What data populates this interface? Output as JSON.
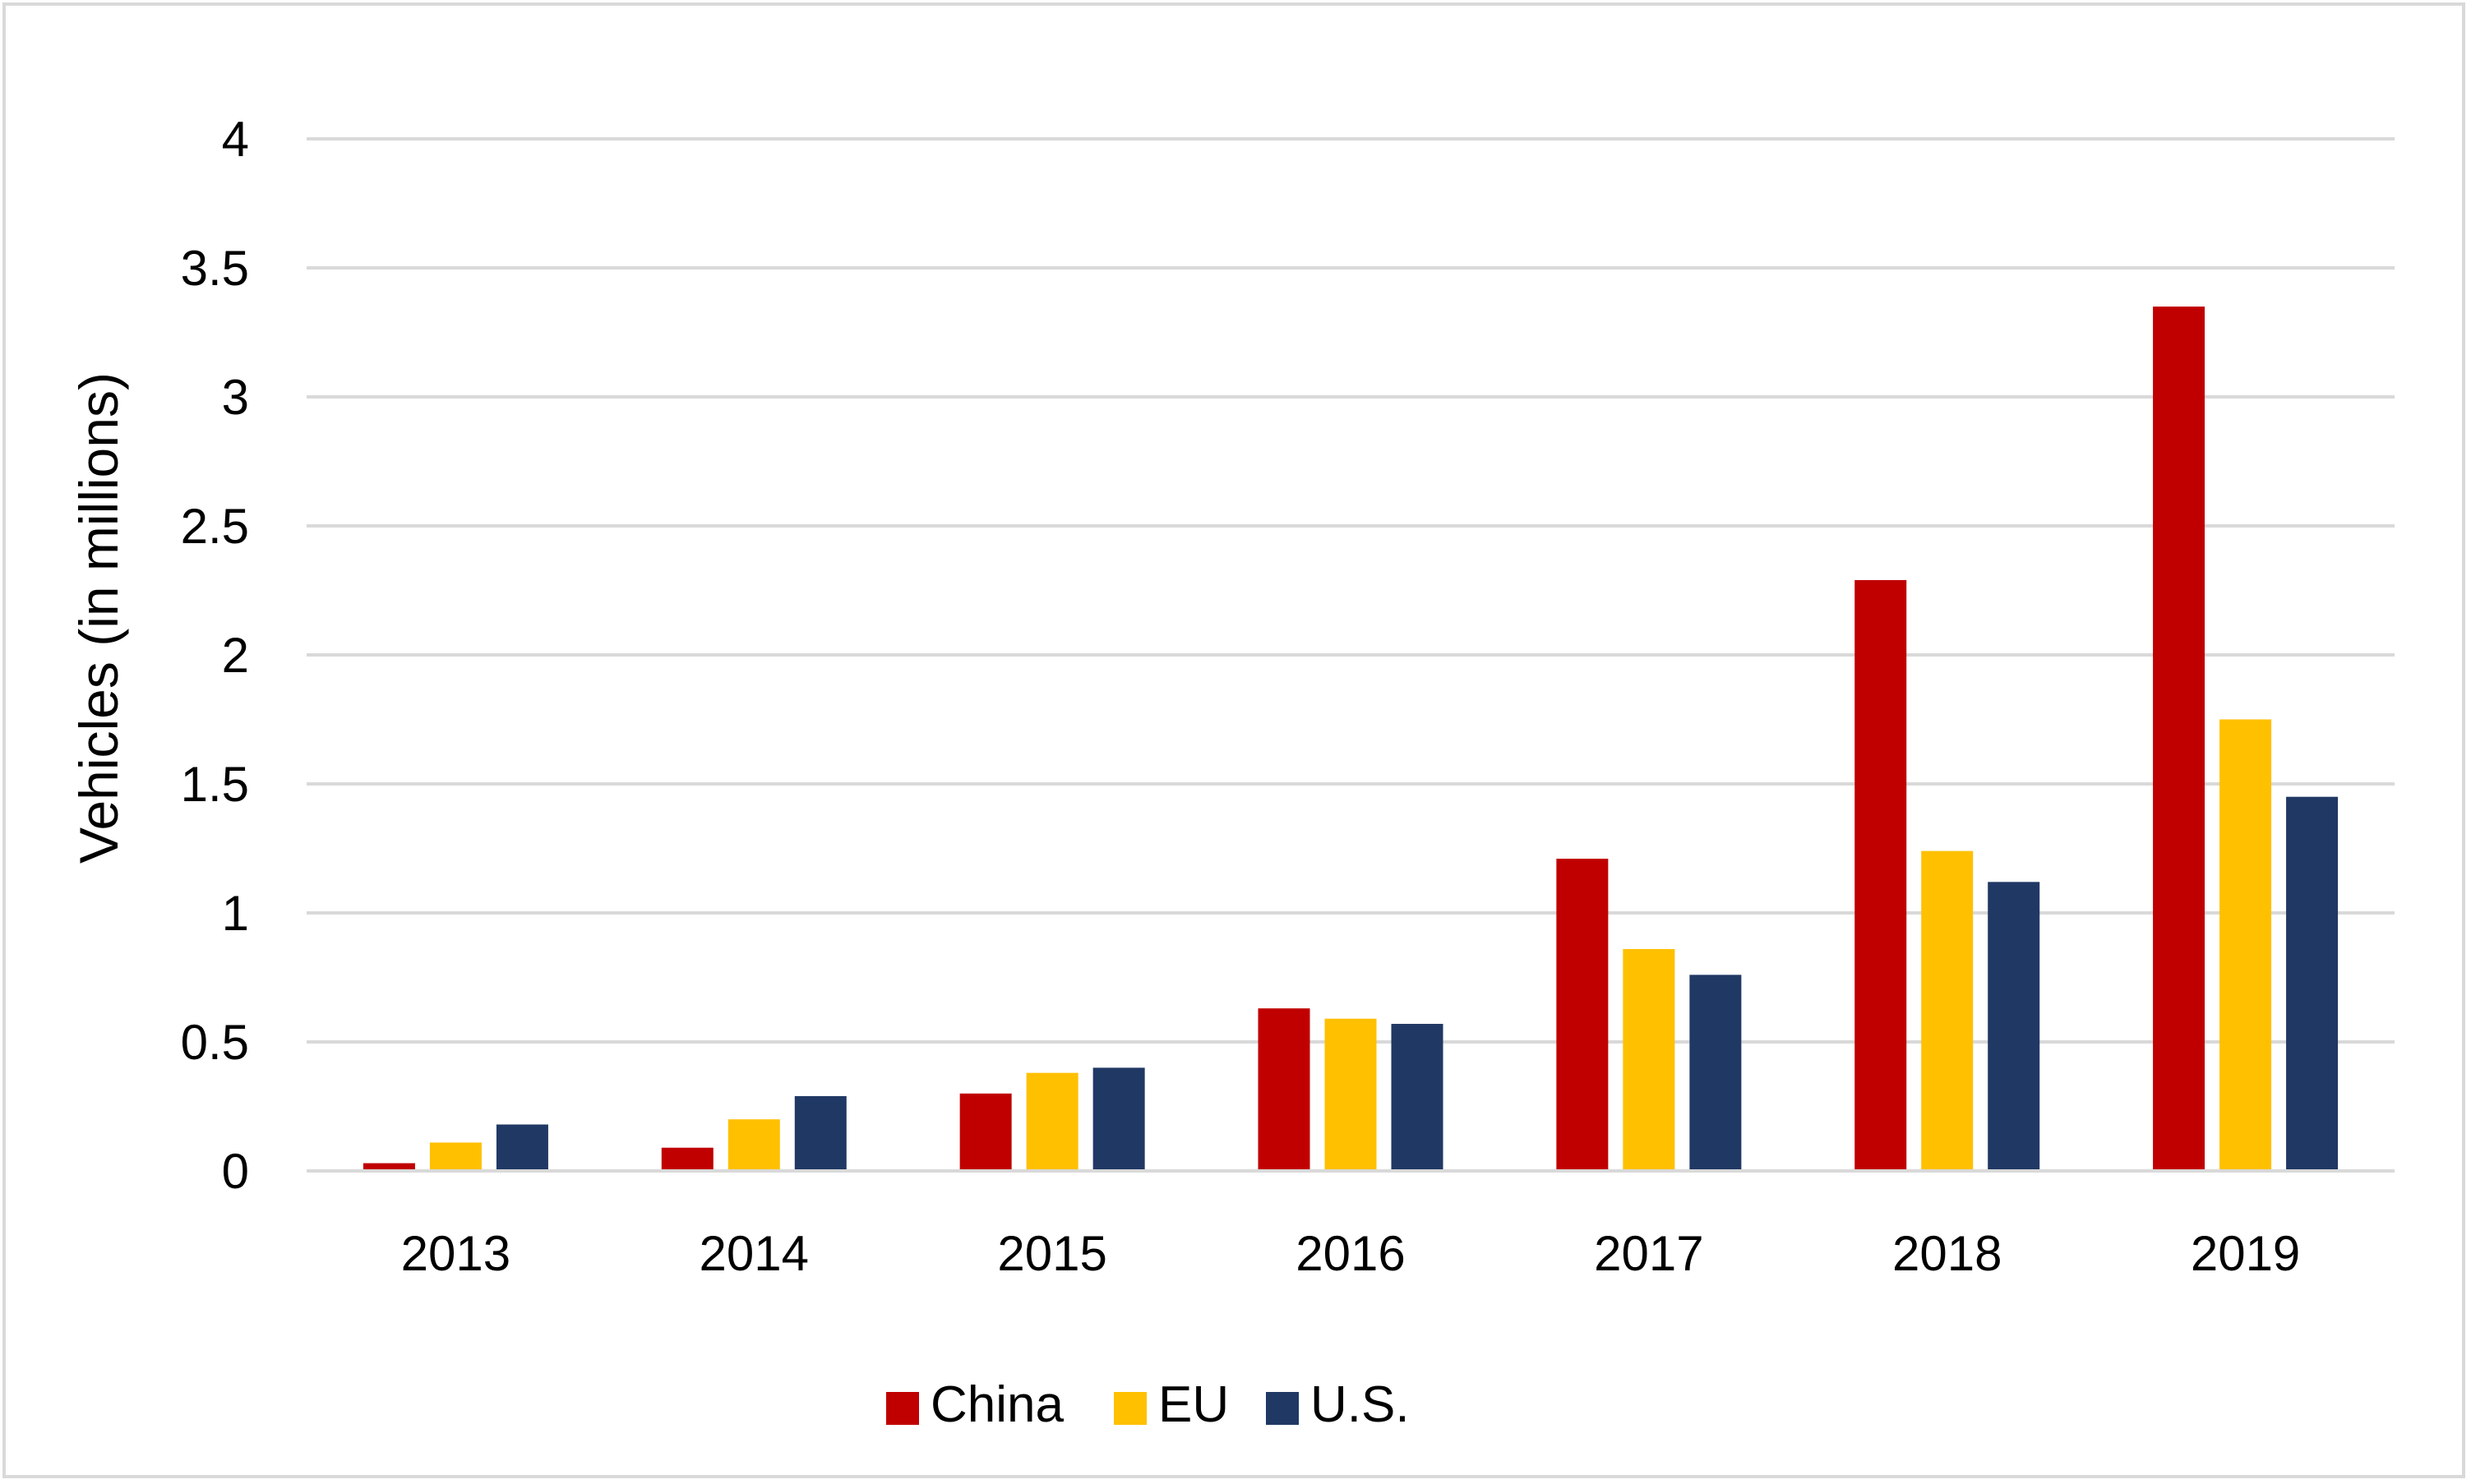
{
  "chart_data": {
    "type": "bar",
    "title": "",
    "xlabel": "",
    "ylabel": "Vehicles (in millions)",
    "ylim": [
      0,
      4
    ],
    "yticks": [
      "0",
      "0.5",
      "1",
      "1.5",
      "2",
      "2.5",
      "3",
      "3.5",
      "4"
    ],
    "categories": [
      "2013",
      "2014",
      "2015",
      "2016",
      "2017",
      "2018",
      "2019"
    ],
    "series": [
      {
        "name": "China",
        "color": "#c00000",
        "values": [
          0.03,
          0.09,
          0.3,
          0.63,
          1.21,
          2.29,
          3.35
        ]
      },
      {
        "name": "EU",
        "color": "#ffc000",
        "values": [
          0.11,
          0.2,
          0.38,
          0.59,
          0.86,
          1.24,
          1.75
        ]
      },
      {
        "name": "U.S.",
        "color": "#203864",
        "values": [
          0.18,
          0.29,
          0.4,
          0.57,
          0.76,
          1.12,
          1.45
        ]
      }
    ],
    "grid": true,
    "gridColor": "#d9d9d9",
    "legend": "bottom-center"
  }
}
